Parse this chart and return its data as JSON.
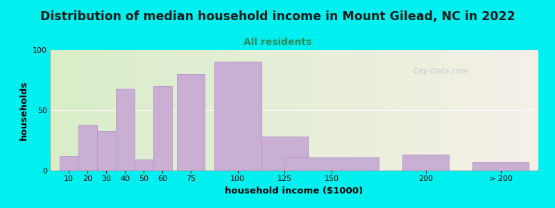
{
  "title": "Distribution of median household income in Mount Gilead, NC in 2022",
  "subtitle": "All residents",
  "xlabel": "household income ($1000)",
  "ylabel": "households",
  "bar_color": "#c9afd4",
  "bar_edge_color": "#b898c8",
  "background_color": "#00efef",
  "plot_bg_left": "#d8edc8",
  "plot_bg_right": "#f5f0e8",
  "title_fontsize": 12.5,
  "subtitle_fontsize": 10,
  "subtitle_color": "#2e8b57",
  "watermark": "City-Data.com",
  "bar_centers": [
    10,
    20,
    30,
    40,
    50,
    60,
    75,
    100,
    125,
    150,
    200,
    240
  ],
  "bar_widths": [
    10,
    10,
    10,
    10,
    10,
    10,
    15,
    25,
    25,
    50,
    25,
    30
  ],
  "bar_values": [
    12,
    38,
    33,
    68,
    9,
    70,
    80,
    90,
    28,
    11,
    13,
    7
  ],
  "xlim": [
    0,
    260
  ],
  "ylim": [
    0,
    100
  ],
  "yticks": [
    0,
    50,
    100
  ],
  "xtick_positions": [
    10,
    20,
    30,
    40,
    50,
    60,
    75,
    100,
    125,
    150,
    200,
    240
  ],
  "xtick_labels": [
    "10",
    "20",
    "30",
    "40",
    "50",
    "60",
    "75",
    "100",
    "125",
    "150",
    "200",
    "> 200"
  ]
}
